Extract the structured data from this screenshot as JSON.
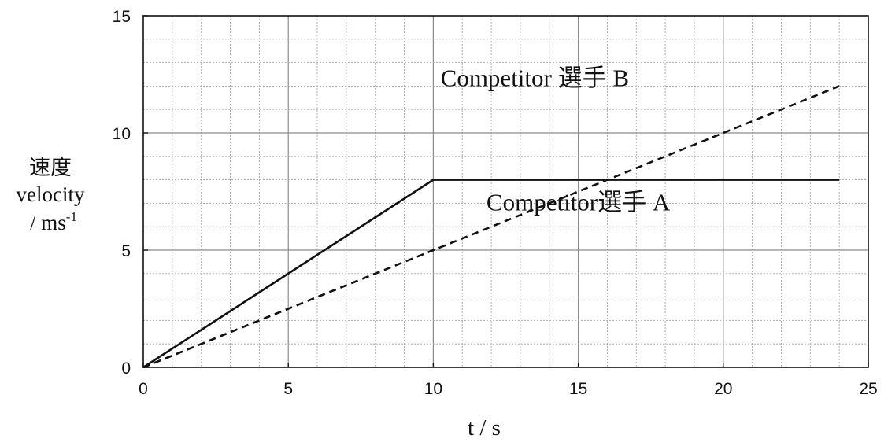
{
  "chart_data": {
    "type": "line",
    "xlabel": "t / s",
    "ylabel": {
      "line1": "速度",
      "line2": "velocity",
      "line3_prefix": "/ ms",
      "line3_sup": "-1"
    },
    "xlim": [
      0,
      25
    ],
    "ylim": [
      0,
      15
    ],
    "x_ticks": [
      0,
      5,
      10,
      15,
      20,
      25
    ],
    "y_ticks": [
      0,
      5,
      10,
      15
    ],
    "grid": true,
    "grid_minor_x_step": 1,
    "grid_minor_y_step": 1,
    "series": [
      {
        "name": "Competitor選手 A",
        "style": "solid",
        "color": "#111111",
        "x": [
          0,
          10,
          24
        ],
        "y": [
          0,
          8,
          8
        ]
      },
      {
        "name": "Competitor 選手 B",
        "style": "dashed",
        "color": "#111111",
        "x": [
          0,
          10,
          24
        ],
        "y": [
          0,
          5,
          12
        ]
      }
    ],
    "annotations": [
      {
        "series": 1,
        "text": "Competitor 選手  B",
        "at_x": 13.5,
        "at_y": 12.0
      },
      {
        "series": 0,
        "text": "Competitor選手  A",
        "at_x": 15.0,
        "at_y": 6.7
      }
    ]
  }
}
